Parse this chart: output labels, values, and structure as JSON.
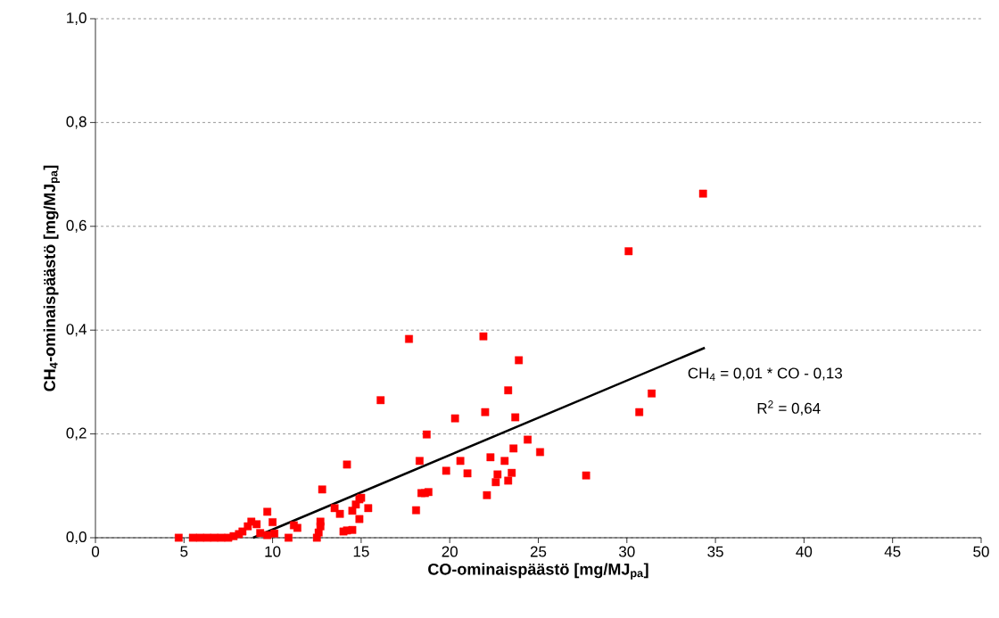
{
  "chart_data": {
    "type": "scatter",
    "xlabel": "CO-ominaispäästö [mg/MJ$_{pa}$]",
    "ylabel": "CH$_{4}$-ominaispäästö [mg/MJ$_{pa}$]",
    "annotations": [
      "CH$_{4}$ = 0,01 * CO - 0,13",
      "R$^{2}$ = 0,64"
    ],
    "xlim": [
      0,
      50
    ],
    "ylim": [
      0,
      1
    ],
    "xticks": [
      0,
      5,
      10,
      15,
      20,
      25,
      30,
      35,
      40,
      45,
      50
    ],
    "yticks": [
      {
        "value": 0,
        "label": "0,0"
      },
      {
        "value": 0.2,
        "label": "0,2"
      },
      {
        "value": 0.4,
        "label": "0,4"
      },
      {
        "value": 0.6,
        "label": "0,6"
      },
      {
        "value": 0.8,
        "label": "0,8"
      },
      {
        "value": 1,
        "label": "1,0"
      }
    ],
    "grid": "y",
    "series": [
      {
        "marker": "square",
        "color": "#ff0000",
        "x": [
          4.7,
          5.5,
          5.9,
          6.3,
          6.7,
          7.1,
          7.5,
          7.8,
          8.1,
          8.3,
          8.6,
          8.8,
          9.1,
          9.3,
          9.7,
          10.0,
          10.1,
          9.7,
          10.9,
          11.2,
          11.4,
          12.5,
          12.6,
          12.7,
          12.8,
          12.7,
          13.5,
          13.8,
          14.0,
          14.2,
          14.2,
          14.5,
          14.5,
          14.7,
          14.9,
          14.9,
          15.0,
          15.4,
          16.1,
          17.7,
          18.1,
          18.3,
          18.4,
          18.6,
          18.7,
          18.8,
          19.8,
          20.3,
          20.6,
          21.0,
          21.9,
          22.0,
          22.1,
          22.3,
          22.6,
          22.7,
          23.1,
          23.3,
          23.3,
          23.5,
          23.6,
          23.7,
          23.9,
          24.4,
          25.1,
          27.7,
          30.1,
          30.7,
          31.4,
          34.3
        ],
        "values": [
          0,
          0,
          0,
          0,
          0,
          0,
          0,
          0.003,
          0.007,
          0.012,
          0.022,
          0.031,
          0.026,
          0.009,
          0.05,
          0.03,
          0.008,
          0.005,
          0,
          0.024,
          0.019,
          0,
          0.01,
          0.031,
          0.093,
          0.022,
          0.057,
          0.046,
          0.012,
          0.014,
          0.141,
          0.015,
          0.052,
          0.064,
          0.074,
          0.036,
          0.077,
          0.057,
          0.265,
          0.383,
          0.053,
          0.148,
          0.086,
          0.086,
          0.199,
          0.088,
          0.129,
          0.23,
          0.148,
          0.124,
          0.388,
          0.242,
          0.082,
          0.155,
          0.107,
          0.122,
          0.148,
          0.11,
          0.284,
          0.125,
          0.172,
          0.232,
          0.342,
          0.189,
          0.165,
          0.12,
          0.552,
          0.242,
          0.278,
          0.663
        ]
      },
      {
        "type": "line",
        "marker": "none",
        "color": "#000000",
        "x": [
          8.9,
          34.4
        ],
        "values": [
          0,
          0.366
        ]
      }
    ]
  }
}
